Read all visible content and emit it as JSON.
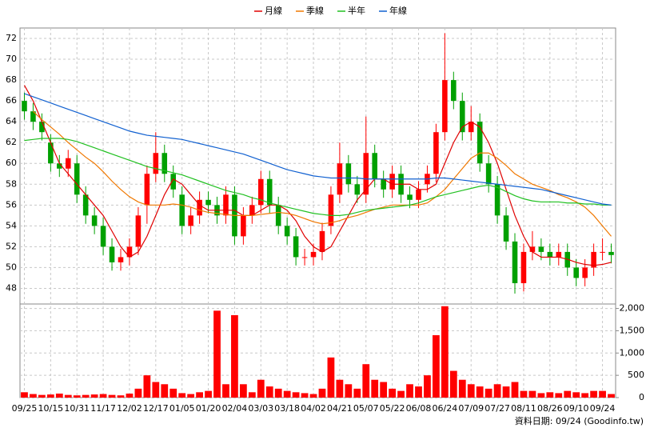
{
  "chart_data": {
    "type": "candlestick",
    "legend": "top",
    "grid": true,
    "up_color": "#ff0000",
    "down_color": "#00a000",
    "categories": [
      "09/25",
      null,
      null,
      "10/15",
      null,
      null,
      "10/31",
      null,
      null,
      "11/17",
      null,
      null,
      "12/02",
      null,
      null,
      "12/17",
      null,
      null,
      "01/05",
      null,
      null,
      "01/20",
      null,
      null,
      "02/04",
      null,
      null,
      "03/03",
      null,
      null,
      "03/18",
      null,
      null,
      "04/02",
      null,
      null,
      "04/21",
      null,
      null,
      "05/07",
      null,
      null,
      "05/22",
      null,
      null,
      "06/08",
      null,
      null,
      "06/24",
      null,
      null,
      "07/09",
      null,
      null,
      "07/27",
      null,
      null,
      "08/11",
      null,
      null,
      "08/26",
      null,
      null,
      "09/10",
      null,
      null,
      "09/24",
      null
    ],
    "open": [
      66,
      65,
      64,
      62,
      60,
      59.5,
      60,
      57,
      55,
      54,
      52,
      50.5,
      51,
      52,
      56,
      59,
      61,
      59,
      57,
      54,
      55,
      56.5,
      56,
      55,
      57,
      53,
      55,
      56,
      58.5,
      56,
      54,
      53,
      51,
      51,
      51.5,
      54,
      57,
      60,
      58,
      57,
      61,
      58.5,
      57.5,
      59,
      57,
      56.5,
      58,
      59,
      63,
      68,
      66,
      63,
      64,
      60,
      58,
      55,
      52.5,
      48.5,
      51.5,
      52,
      51.5,
      51,
      51.5,
      50,
      49,
      50,
      51.5,
      51.5
    ],
    "high": [
      66.8,
      65.8,
      64.8,
      62.8,
      60.8,
      61.3,
      60.8,
      57.8,
      55.8,
      54.8,
      52.8,
      51.8,
      52.8,
      55.8,
      59.8,
      63,
      61.8,
      59.8,
      57.8,
      55.8,
      57.3,
      57.3,
      56.8,
      57.8,
      57.8,
      55.8,
      56.8,
      59.3,
      59.3,
      56.8,
      54.8,
      53.8,
      51.8,
      52.3,
      54.3,
      57.8,
      62,
      60.8,
      58.8,
      64.5,
      61.8,
      59.3,
      59.8,
      59.8,
      57.8,
      58.3,
      59.8,
      63.8,
      72.5,
      68.8,
      66.8,
      65.5,
      64.8,
      60.8,
      58.8,
      55.8,
      53.3,
      52.3,
      53.5,
      52.8,
      52.3,
      52.3,
      52.3,
      50.8,
      50.8,
      52.3,
      52.8,
      52.3
    ],
    "low": [
      64.2,
      63.2,
      62.2,
      59.2,
      58.7,
      58.7,
      56.2,
      54.2,
      53.2,
      51.2,
      49.7,
      49.7,
      50.2,
      51.2,
      54.2,
      58.2,
      58.2,
      56.7,
      53.2,
      53.2,
      54.2,
      55.2,
      54.2,
      54.2,
      52.2,
      52.2,
      54.2,
      55.2,
      55.2,
      53.2,
      52.2,
      50.2,
      50.2,
      50.2,
      50.7,
      53.2,
      56.2,
      57.2,
      56.2,
      56.2,
      57.7,
      56.7,
      56.7,
      56.2,
      55.7,
      55.7,
      57.2,
      58.2,
      62.2,
      65.2,
      62.2,
      62.2,
      59.2,
      57.2,
      54.2,
      51.7,
      47.5,
      47.7,
      50.7,
      50.7,
      50.2,
      50.2,
      49.2,
      48.2,
      48.2,
      49.2,
      50.7,
      50.4
    ],
    "close": [
      65,
      64,
      63,
      60,
      59.5,
      60.5,
      57,
      55,
      54,
      52,
      50.5,
      51,
      52,
      55,
      59,
      61,
      59,
      57.5,
      54,
      55,
      56.5,
      56,
      55,
      57,
      53,
      55,
      56,
      58.5,
      56,
      54,
      53,
      51,
      51,
      51.5,
      53.5,
      57,
      60,
      58,
      57,
      61,
      58.5,
      57.5,
      59,
      57,
      56.5,
      57.5,
      59,
      63,
      68,
      66,
      63,
      64,
      60,
      58,
      55,
      52.5,
      48.5,
      51.5,
      52,
      51.5,
      51,
      51.5,
      50,
      49,
      50,
      51.5,
      51.5,
      51.2
    ],
    "ylim": [
      46.5,
      73
    ],
    "yticks": [
      48,
      50,
      52,
      54,
      56,
      58,
      60,
      62,
      64,
      66,
      68,
      70,
      72
    ],
    "series": [
      {
        "name": "月線",
        "color": "#e00000",
        "values": [
          67.5,
          66,
          64,
          62,
          60,
          59,
          58,
          57,
          56,
          55,
          53.5,
          52,
          51,
          51.5,
          53,
          55,
          57,
          58.5,
          58,
          57,
          56,
          55.5,
          55.5,
          55.5,
          55.5,
          55,
          55,
          55.5,
          56,
          56,
          55.5,
          54.5,
          53,
          52,
          51.5,
          52,
          53.5,
          55,
          56.5,
          57.5,
          58.5,
          58.5,
          58,
          58,
          58,
          57.5,
          57.5,
          58,
          60,
          62,
          63.5,
          64,
          63.5,
          62,
          60,
          57.5,
          55,
          53,
          51.5,
          51,
          51,
          51,
          50.8,
          50.5,
          50.3,
          50.2,
          50.3,
          50.5
        ]
      },
      {
        "name": "季線",
        "color": "#f07800",
        "values": [
          null,
          65,
          64.2,
          63.5,
          62.8,
          62,
          61.3,
          60.6,
          60,
          59.2,
          58.3,
          57.5,
          56.8,
          56.3,
          56,
          56,
          56,
          56.1,
          56,
          55.8,
          55.5,
          55.3,
          55.2,
          55.1,
          55,
          55,
          55,
          55.1,
          55.2,
          55.3,
          55.2,
          55,
          54.7,
          54.4,
          54.2,
          54.3,
          54.5,
          54.8,
          55,
          55.3,
          55.6,
          55.8,
          56,
          56,
          56,
          56,
          56.2,
          56.8,
          57.5,
          58.5,
          59.5,
          60.5,
          61,
          61,
          60.5,
          59.8,
          59,
          58.5,
          58,
          57.7,
          57.4,
          57,
          56.7,
          56.3,
          55.8,
          55,
          54,
          53
        ]
      },
      {
        "name": "半年",
        "color": "#20c020",
        "values": [
          62.2,
          62.3,
          62.4,
          62.4,
          62.4,
          62.3,
          62.1,
          61.8,
          61.5,
          61.2,
          60.9,
          60.6,
          60.3,
          60,
          59.7,
          59.5,
          59.3,
          59.1,
          58.9,
          58.6,
          58.3,
          58,
          57.7,
          57.4,
          57.2,
          57,
          56.7,
          56.5,
          56.2,
          56,
          55.8,
          55.6,
          55.4,
          55.2,
          55.1,
          55,
          55,
          55.1,
          55.3,
          55.5,
          55.6,
          55.7,
          55.8,
          55.9,
          56,
          56.2,
          56.5,
          56.8,
          57,
          57.2,
          57.4,
          57.6,
          57.8,
          57.9,
          57.7,
          57.3,
          56.9,
          56.6,
          56.4,
          56.3,
          56.3,
          56.3,
          56.2,
          56.2,
          56.1,
          56.1,
          56,
          56
        ]
      },
      {
        "name": "年線",
        "color": "#1060d0",
        "values": [
          66.7,
          66.4,
          66.1,
          65.8,
          65.5,
          65.2,
          64.9,
          64.6,
          64.3,
          64,
          63.7,
          63.4,
          63.1,
          62.9,
          62.7,
          62.6,
          62.5,
          62.4,
          62.3,
          62.1,
          61.9,
          61.7,
          61.5,
          61.3,
          61.1,
          60.9,
          60.6,
          60.3,
          60,
          59.7,
          59.4,
          59.2,
          59,
          58.8,
          58.7,
          58.6,
          58.6,
          58.6,
          58.6,
          58.5,
          58.5,
          58.5,
          58.5,
          58.5,
          58.5,
          58.5,
          58.5,
          58.6,
          58.6,
          58.5,
          58.4,
          58.3,
          58.2,
          58.1,
          58,
          57.9,
          57.8,
          57.7,
          57.6,
          57.5,
          57.3,
          57.1,
          56.9,
          56.7,
          56.5,
          56.3,
          56.1,
          56
        ]
      }
    ],
    "volume": {
      "color": "#ff0000",
      "values": [
        120,
        80,
        60,
        70,
        90,
        60,
        50,
        60,
        70,
        80,
        60,
        50,
        90,
        200,
        500,
        350,
        300,
        200,
        100,
        80,
        120,
        150,
        1950,
        300,
        1850,
        300,
        120,
        400,
        250,
        200,
        150,
        120,
        100,
        80,
        200,
        900,
        400,
        300,
        200,
        750,
        400,
        350,
        200,
        150,
        300,
        250,
        500,
        1400,
        2050,
        600,
        400,
        300,
        250,
        200,
        300,
        250,
        350,
        150,
        150,
        100,
        120,
        100,
        150,
        120,
        100,
        150,
        150,
        80
      ],
      "ylim": [
        0,
        2100
      ],
      "yticks": [
        0,
        500,
        {
          "value": 1000,
          "label": "1,000"
        },
        {
          "value": 1500,
          "label": "1,500"
        },
        {
          "value": 2000,
          "label": "2,000"
        }
      ]
    },
    "footer": "資料日期: 09/24  (Goodinfo.tw)"
  }
}
